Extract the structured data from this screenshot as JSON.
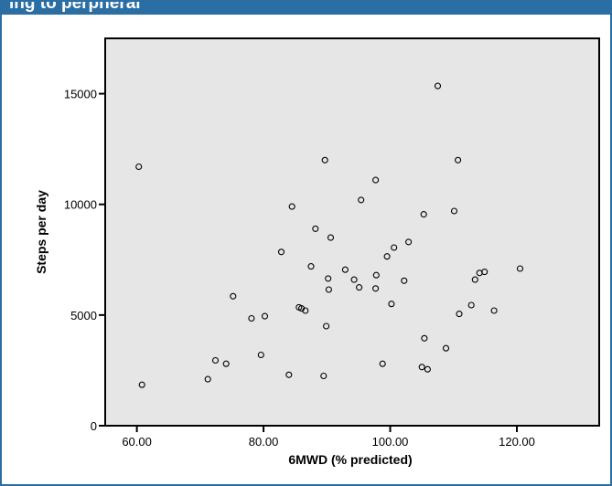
{
  "header": {
    "title": "ing to perpheral"
  },
  "colors": {
    "frame": "#2b6ea3",
    "plot_background": "#e6e6e6",
    "marker": "#000000"
  },
  "chart_data": {
    "type": "scatter",
    "title": "",
    "xlabel": "6MWD (% predicted)",
    "ylabel": "Steps per day",
    "xlim": [
      55,
      133
    ],
    "ylim": [
      0,
      17500
    ],
    "xticks": [
      60,
      80,
      100,
      120
    ],
    "xtick_labels": [
      "60.00",
      "80.00",
      "100.00",
      "120.00"
    ],
    "yticks": [
      0,
      5000,
      10000,
      15000
    ],
    "ytick_labels": [
      "0",
      "5000",
      "10000",
      "15000"
    ],
    "grid": false,
    "legend": false,
    "marker": "open-circle",
    "points": [
      {
        "x": 60.3,
        "y": 11700
      },
      {
        "x": 60.8,
        "y": 1850
      },
      {
        "x": 71.2,
        "y": 2100
      },
      {
        "x": 72.4,
        "y": 2950
      },
      {
        "x": 74.1,
        "y": 2800
      },
      {
        "x": 75.2,
        "y": 5850
      },
      {
        "x": 78.1,
        "y": 4850
      },
      {
        "x": 79.6,
        "y": 3200
      },
      {
        "x": 80.2,
        "y": 4950
      },
      {
        "x": 82.8,
        "y": 7850
      },
      {
        "x": 84.0,
        "y": 2300
      },
      {
        "x": 84.5,
        "y": 9900
      },
      {
        "x": 85.6,
        "y": 5350
      },
      {
        "x": 86.0,
        "y": 5300
      },
      {
        "x": 86.6,
        "y": 5200
      },
      {
        "x": 87.5,
        "y": 7200
      },
      {
        "x": 88.2,
        "y": 8900
      },
      {
        "x": 89.5,
        "y": 2250
      },
      {
        "x": 89.7,
        "y": 12000
      },
      {
        "x": 89.9,
        "y": 4500
      },
      {
        "x": 90.2,
        "y": 6650
      },
      {
        "x": 90.3,
        "y": 6150
      },
      {
        "x": 90.6,
        "y": 8500
      },
      {
        "x": 92.9,
        "y": 7050
      },
      {
        "x": 94.3,
        "y": 6600
      },
      {
        "x": 95.1,
        "y": 6250
      },
      {
        "x": 95.4,
        "y": 10200
      },
      {
        "x": 97.7,
        "y": 11100
      },
      {
        "x": 97.7,
        "y": 6200
      },
      {
        "x": 97.8,
        "y": 6800
      },
      {
        "x": 98.8,
        "y": 2800
      },
      {
        "x": 99.5,
        "y": 7650
      },
      {
        "x": 100.2,
        "y": 5500
      },
      {
        "x": 100.6,
        "y": 8050
      },
      {
        "x": 102.2,
        "y": 6550
      },
      {
        "x": 102.9,
        "y": 8300
      },
      {
        "x": 105.0,
        "y": 2650
      },
      {
        "x": 105.3,
        "y": 9550
      },
      {
        "x": 105.4,
        "y": 3950
      },
      {
        "x": 105.9,
        "y": 2550
      },
      {
        "x": 107.5,
        "y": 15350
      },
      {
        "x": 108.8,
        "y": 3500
      },
      {
        "x": 110.1,
        "y": 9700
      },
      {
        "x": 110.7,
        "y": 12000
      },
      {
        "x": 110.9,
        "y": 5050
      },
      {
        "x": 112.8,
        "y": 5450
      },
      {
        "x": 113.4,
        "y": 6600
      },
      {
        "x": 114.1,
        "y": 6900
      },
      {
        "x": 114.9,
        "y": 6950
      },
      {
        "x": 116.4,
        "y": 5200
      },
      {
        "x": 120.5,
        "y": 7100
      }
    ]
  }
}
